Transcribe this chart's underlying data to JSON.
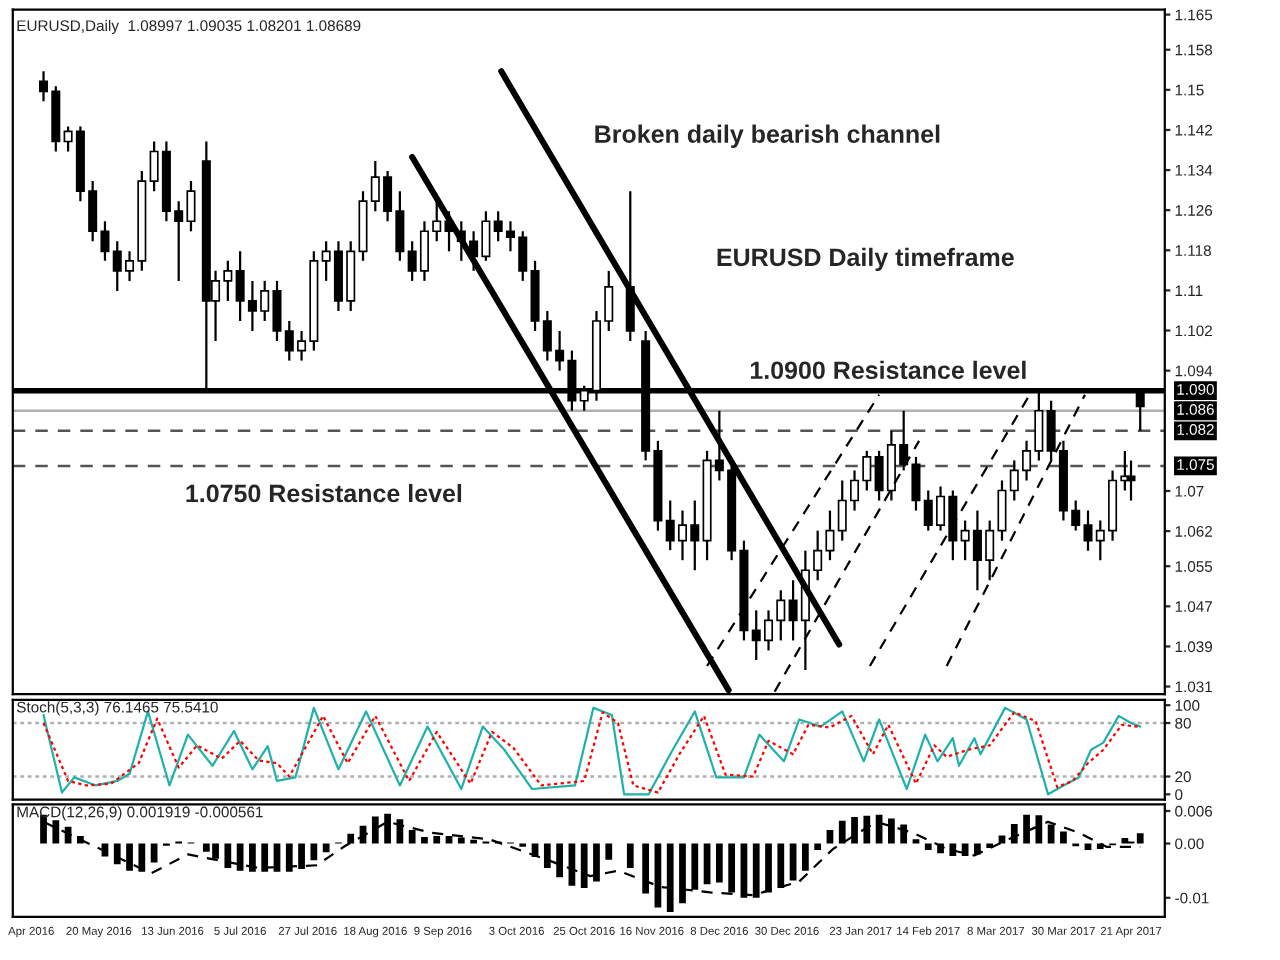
{
  "chart_data": [
    {
      "type": "candlestick",
      "title": "EURUSD,Daily  1.08997 1.09035 1.08201 1.08689",
      "tick_labels": "y",
      "x": [
        "2016-05-02",
        "2016-05-06",
        "2016-05-10",
        "2016-05-14",
        "2016-05-18",
        "2016-05-22",
        "2016-05-26",
        "2016-05-30",
        "2016-06-03",
        "2016-06-07",
        "2016-06-11",
        "2016-06-15",
        "2016-06-19",
        "2016-06-24",
        "2016-06-27",
        "2016-07-01",
        "2016-07-05",
        "2016-07-09",
        "2016-07-13",
        "2016-07-17",
        "2016-07-21",
        "2016-07-25",
        "2016-07-29",
        "2016-08-02",
        "2016-08-06",
        "2016-08-10",
        "2016-08-14",
        "2016-08-18",
        "2016-08-22",
        "2016-08-26",
        "2016-08-30",
        "2016-09-03",
        "2016-09-07",
        "2016-09-11",
        "2016-09-15",
        "2016-09-19",
        "2016-09-23",
        "2016-09-27",
        "2016-10-01",
        "2016-10-05",
        "2016-10-09",
        "2016-10-13",
        "2016-10-17",
        "2016-10-21",
        "2016-10-25",
        "2016-10-29",
        "2016-11-02",
        "2016-11-09",
        "2016-11-14",
        "2016-11-18",
        "2016-11-22",
        "2016-11-26",
        "2016-11-30",
        "2016-12-04",
        "2016-12-08",
        "2016-12-12",
        "2016-12-16",
        "2016-12-20",
        "2016-12-24",
        "2016-12-28",
        "2017-01-01",
        "2017-01-05",
        "2017-01-09",
        "2017-01-13",
        "2017-01-17",
        "2017-01-21",
        "2017-01-25",
        "2017-01-29",
        "2017-02-02",
        "2017-02-06",
        "2017-02-10",
        "2017-02-14",
        "2017-02-18",
        "2017-02-22",
        "2017-02-26",
        "2017-03-02",
        "2017-03-06",
        "2017-03-10",
        "2017-03-14",
        "2017-03-18",
        "2017-03-22",
        "2017-03-26",
        "2017-03-30",
        "2017-04-03",
        "2017-04-07",
        "2017-04-11",
        "2017-04-15",
        "2017-04-19",
        "2017-04-21",
        "2017-04-24"
      ],
      "ohlc": [
        [
          1.1517,
          1.1537,
          1.1477,
          1.1497
        ],
        [
          1.1497,
          1.1507,
          1.1377,
          1.1397
        ],
        [
          1.1397,
          1.1427,
          1.1377,
          1.1417
        ],
        [
          1.1417,
          1.1427,
          1.1278,
          1.1298
        ],
        [
          1.1298,
          1.1318,
          1.1198,
          1.1218
        ],
        [
          1.1218,
          1.1238,
          1.1159,
          1.1178
        ],
        [
          1.1178,
          1.1198,
          1.1099,
          1.1139
        ],
        [
          1.1139,
          1.1178,
          1.1119,
          1.1159
        ],
        [
          1.1159,
          1.1338,
          1.1139,
          1.1318
        ],
        [
          1.1318,
          1.1397,
          1.1298,
          1.1377
        ],
        [
          1.1377,
          1.1397,
          1.1238,
          1.1258
        ],
        [
          1.1258,
          1.1278,
          1.1119,
          1.1238
        ],
        [
          1.1238,
          1.1318,
          1.1218,
          1.1298
        ],
        [
          1.1358,
          1.1397,
          1.09,
          1.1079
        ],
        [
          1.1079,
          1.1139,
          1.0999,
          1.1119
        ],
        [
          1.1119,
          1.1159,
          1.1079,
          1.1139
        ],
        [
          1.1139,
          1.1178,
          1.1039,
          1.1079
        ],
        [
          1.1079,
          1.1119,
          1.1019,
          1.1059
        ],
        [
          1.1059,
          1.1119,
          1.1039,
          1.1099
        ],
        [
          1.1099,
          1.1119,
          1.0999,
          1.1019
        ],
        [
          1.1019,
          1.1039,
          1.096,
          1.098
        ],
        [
          1.098,
          1.1019,
          1.096,
          1.0999
        ],
        [
          1.0999,
          1.1178,
          1.098,
          1.1159
        ],
        [
          1.1159,
          1.1198,
          1.1119,
          1.1178
        ],
        [
          1.1178,
          1.1198,
          1.1059,
          1.1079
        ],
        [
          1.1079,
          1.1198,
          1.1059,
          1.1178
        ],
        [
          1.1178,
          1.1298,
          1.1159,
          1.1278
        ],
        [
          1.1278,
          1.1358,
          1.1258,
          1.1326
        ],
        [
          1.1326,
          1.1338,
          1.1238,
          1.1258
        ],
        [
          1.1258,
          1.1298,
          1.1159,
          1.1178
        ],
        [
          1.1178,
          1.1198,
          1.1119,
          1.1139
        ],
        [
          1.1139,
          1.1238,
          1.1119,
          1.1218
        ],
        [
          1.1218,
          1.1278,
          1.1198,
          1.1238
        ],
        [
          1.1238,
          1.1258,
          1.1178,
          1.1218
        ],
        [
          1.1218,
          1.1238,
          1.1159,
          1.1198
        ],
        [
          1.1198,
          1.1218,
          1.1139,
          1.1168
        ],
        [
          1.1168,
          1.1258,
          1.1159,
          1.1238
        ],
        [
          1.1238,
          1.1258,
          1.1198,
          1.1218
        ],
        [
          1.1218,
          1.1238,
          1.1178,
          1.1206
        ],
        [
          1.1206,
          1.1218,
          1.1119,
          1.1139
        ],
        [
          1.1139,
          1.1159,
          1.1019,
          1.1039
        ],
        [
          1.1039,
          1.1059,
          1.096,
          1.098
        ],
        [
          1.098,
          1.1019,
          1.094,
          1.096
        ],
        [
          1.096,
          1.098,
          1.086,
          1.088
        ],
        [
          1.088,
          1.091,
          1.086,
          1.09
        ],
        [
          1.09,
          1.1059,
          1.088,
          1.1039
        ],
        [
          1.1039,
          1.1139,
          1.1019,
          1.1107
        ],
        [
          1.1107,
          1.1298,
          1.0999,
          1.1019
        ],
        [
          1.0999,
          1.1019,
          1.0761,
          1.078
        ],
        [
          1.078,
          1.08,
          1.0621,
          1.0641
        ],
        [
          1.0641,
          1.0681,
          1.0582,
          1.0601
        ],
        [
          1.0601,
          1.0661,
          1.0562,
          1.0632
        ],
        [
          1.0632,
          1.0681,
          1.0542,
          1.0601
        ],
        [
          1.0601,
          1.078,
          1.0562,
          1.0761
        ],
        [
          1.0761,
          1.086,
          1.0721,
          1.0741
        ],
        [
          1.0741,
          1.0761,
          1.0562,
          1.0581
        ],
        [
          1.0581,
          1.0601,
          1.0402,
          1.0422
        ],
        [
          1.0422,
          1.0462,
          1.0363,
          1.0402
        ],
        [
          1.0402,
          1.0462,
          1.0382,
          1.0442
        ],
        [
          1.0442,
          1.0502,
          1.0402,
          1.0482
        ],
        [
          1.0482,
          1.0522,
          1.0402,
          1.0442
        ],
        [
          1.0442,
          1.0581,
          1.0343,
          1.0542
        ],
        [
          1.0542,
          1.0621,
          1.0522,
          1.0581
        ],
        [
          1.0581,
          1.0661,
          1.0562,
          1.0621
        ],
        [
          1.0621,
          1.0721,
          1.0601,
          1.0681
        ],
        [
          1.0681,
          1.0741,
          1.0661,
          1.0721
        ],
        [
          1.0721,
          1.078,
          1.0701,
          1.0768
        ],
        [
          1.0768,
          1.078,
          1.0681,
          1.0701
        ],
        [
          1.0701,
          1.082,
          1.0681,
          1.0792
        ],
        [
          1.0792,
          1.086,
          1.0741,
          1.0753
        ],
        [
          1.0753,
          1.0768,
          1.0661,
          1.0681
        ],
        [
          1.0681,
          1.0701,
          1.0621,
          1.0632
        ],
        [
          1.0632,
          1.0709,
          1.0621,
          1.0689
        ],
        [
          1.0689,
          1.0701,
          1.0562,
          1.0601
        ],
        [
          1.0601,
          1.0641,
          1.0562,
          1.0621
        ],
        [
          1.0621,
          1.0661,
          1.0502,
          1.0562
        ],
        [
          1.0562,
          1.0641,
          1.0522,
          1.0621
        ],
        [
          1.0621,
          1.0721,
          1.0601,
          1.0701
        ],
        [
          1.0701,
          1.0761,
          1.0681,
          1.0741
        ],
        [
          1.0741,
          1.08,
          1.0721,
          1.078
        ],
        [
          1.078,
          1.09,
          1.0761,
          1.086
        ],
        [
          1.086,
          1.088,
          1.0761,
          1.078
        ],
        [
          1.078,
          1.08,
          1.0641,
          1.0661
        ],
        [
          1.0661,
          1.0681,
          1.0621,
          1.0632
        ],
        [
          1.0632,
          1.0661,
          1.0581,
          1.0601
        ],
        [
          1.0601,
          1.0641,
          1.0562,
          1.0621
        ],
        [
          1.0621,
          1.0741,
          1.0601,
          1.0721
        ],
        [
          1.0721,
          1.078,
          1.0701,
          1.0729
        ],
        [
          1.0729,
          1.0761,
          1.0681,
          1.0721
        ],
        [
          1.08997,
          1.09035,
          1.08201,
          1.08689
        ]
      ],
      "series": [
        {
          "type": "line",
          "color": "#000000",
          "line_style": "solid",
          "x": [
            "2016-08-30",
            "2016-12-11"
          ],
          "values": [
            1.1366,
            1.0303
          ]
        },
        {
          "type": "line",
          "color": "#000000",
          "line_style": "solid",
          "x": [
            "2016-09-28",
            "2017-01-16"
          ],
          "values": [
            1.1537,
            1.0394
          ]
        },
        {
          "type": "line",
          "color": "#000000",
          "line_style": "dashed",
          "x": [
            "2016-12-04",
            "2017-01-29"
          ],
          "values": [
            1.0351,
            1.0892
          ]
        },
        {
          "type": "line",
          "color": "#000000",
          "line_style": "dashed",
          "x": [
            "2016-12-26",
            "2017-02-11"
          ],
          "values": [
            1.03,
            1.08
          ]
        },
        {
          "type": "line",
          "color": "#000000",
          "line_style": "dashed",
          "x": [
            "2017-01-26",
            "2017-03-19"
          ],
          "values": [
            1.0351,
            1.0892
          ]
        },
        {
          "type": "line",
          "color": "#000000",
          "line_style": "dashed",
          "x": [
            "2017-02-20",
            "2017-04-06"
          ],
          "values": [
            1.0351,
            1.0892
          ]
        }
      ],
      "ref_lines": [
        {
          "axis": "y",
          "value": 1.09,
          "label": "1.090",
          "color": "#000000",
          "line_style": "solid"
        },
        {
          "axis": "y",
          "value": 1.086,
          "label": "1.086",
          "color": "#b0b0b0",
          "line_style": "solid"
        },
        {
          "axis": "y",
          "value": 1.082,
          "label": "1.082",
          "color": "#555555",
          "line_style": "dashed"
        },
        {
          "axis": "y",
          "value": 1.075,
          "label": "1.075",
          "color": "#555555",
          "line_style": "dashed"
        }
      ],
      "annotations": [
        "Broken daily bearish channel",
        "EURUSD Daily timeframe",
        "1.0900 Resistance level",
        "1.0750 Resistance level"
      ],
      "xlim": [
        "2016-04-22",
        "2017-05-02"
      ],
      "ylim": [
        1.0295,
        1.166
      ],
      "yticks": [
        1.031,
        1.039,
        1.047,
        1.055,
        1.062,
        1.07,
        1.094,
        1.102,
        1.11,
        1.118,
        1.126,
        1.134,
        1.142,
        1.15,
        1.158,
        1.165
      ],
      "grid": false,
      "legend": false
    },
    {
      "type": "line",
      "title": "Stoch(5,3,3) 76.1465 75.5410",
      "tick_labels": "y",
      "series": [
        {
          "color": "#20b2aa",
          "line_style": "solid",
          "x": [
            "2016-05-02",
            "2016-05-08",
            "2016-05-12",
            "2016-05-19",
            "2016-05-26",
            "2016-05-30",
            "2016-06-05",
            "2016-06-12",
            "2016-06-18",
            "2016-06-26",
            "2016-07-03",
            "2016-07-09",
            "2016-07-14",
            "2016-07-17",
            "2016-07-23",
            "2016-07-29",
            "2016-08-06",
            "2016-08-15",
            "2016-08-26",
            "2016-09-04",
            "2016-09-15",
            "2016-09-22",
            "2016-09-29",
            "2016-10-08",
            "2016-10-22",
            "2016-10-28",
            "2016-11-03",
            "2016-11-07",
            "2016-11-15",
            "2016-11-22",
            "2016-11-30",
            "2016-12-07",
            "2016-12-16",
            "2016-12-21",
            "2016-12-29",
            "2017-01-03",
            "2017-01-10",
            "2017-01-17",
            "2017-01-24",
            "2017-01-29",
            "2017-02-07",
            "2017-02-13",
            "2017-02-17",
            "2017-02-22",
            "2017-02-24",
            "2017-03-01",
            "2017-03-03",
            "2017-03-11",
            "2017-03-18",
            "2017-03-25",
            "2017-03-30",
            "2017-04-04",
            "2017-04-08",
            "2017-04-12",
            "2017-04-17",
            "2017-04-21",
            "2017-04-24"
          ],
          "values": [
            89,
            2,
            19,
            10,
            15,
            23,
            93,
            10,
            67,
            32,
            71,
            28,
            54,
            15,
            19,
            97,
            28,
            93,
            10,
            76,
            6,
            76,
            50,
            6,
            10,
            97,
            89,
            0,
            0,
            45,
            93,
            19,
            19,
            67,
            37,
            84,
            76,
            93,
            37,
            84,
            6,
            67,
            37,
            63,
            32,
            63,
            45,
            97,
            84,
            0,
            10,
            19,
            50,
            58,
            88,
            80,
            76
          ]
        },
        {
          "color": "#ff0000",
          "line_style": "dotted",
          "x": [
            "2016-05-02",
            "2016-05-10",
            "2016-05-16",
            "2016-05-24",
            "2016-06-02",
            "2016-06-08",
            "2016-06-15",
            "2016-06-21",
            "2016-06-29",
            "2016-07-05",
            "2016-07-11",
            "2016-07-17",
            "2016-07-21",
            "2016-08-01",
            "2016-08-09",
            "2016-08-18",
            "2016-08-29",
            "2016-09-07",
            "2016-09-18",
            "2016-09-25",
            "2016-10-02",
            "2016-10-11",
            "2016-10-25",
            "2016-10-31",
            "2016-11-05",
            "2016-11-10",
            "2016-11-18",
            "2016-11-25",
            "2016-12-03",
            "2016-12-10",
            "2016-12-19",
            "2016-12-24",
            "2017-01-01",
            "2017-01-06",
            "2017-01-13",
            "2017-01-20",
            "2017-01-27",
            "2017-02-01",
            "2017-02-10",
            "2017-02-16",
            "2017-02-20",
            "2017-02-27",
            "2017-03-06",
            "2017-03-14",
            "2017-03-21",
            "2017-03-28",
            "2017-04-02",
            "2017-04-07",
            "2017-04-12",
            "2017-04-18",
            "2017-04-24"
          ],
          "values": [
            80,
            15,
            10,
            12,
            35,
            85,
            30,
            55,
            40,
            60,
            38,
            35,
            20,
            88,
            35,
            88,
            15,
            70,
            12,
            70,
            52,
            10,
            15,
            92,
            80,
            10,
            2,
            45,
            88,
            22,
            20,
            60,
            45,
            78,
            75,
            88,
            45,
            78,
            12,
            55,
            42,
            50,
            55,
            92,
            82,
            8,
            15,
            35,
            50,
            78,
            75.5
          ]
        }
      ],
      "ref_lines": [
        {
          "axis": "y",
          "value": 80,
          "color": "#b0b0b0",
          "line_style": "dotted"
        },
        {
          "axis": "y",
          "value": 20,
          "color": "#b0b0b0",
          "line_style": "dotted"
        }
      ],
      "xlim": [
        "2016-04-22",
        "2017-05-02"
      ],
      "ylim": [
        -6,
        106
      ],
      "yticks": [
        0,
        20,
        80,
        100
      ],
      "grid": false,
      "legend": false
    },
    {
      "type": "bar",
      "title": "MACD(12,26,9) 0.001919 -0.000561",
      "x": [
        "2016-05-02",
        "2016-05-06",
        "2016-05-10",
        "2016-05-14",
        "2016-05-18",
        "2016-05-22",
        "2016-05-26",
        "2016-05-30",
        "2016-06-03",
        "2016-06-07",
        "2016-06-11",
        "2016-06-15",
        "2016-06-19",
        "2016-06-24",
        "2016-06-27",
        "2016-07-01",
        "2016-07-05",
        "2016-07-09",
        "2016-07-13",
        "2016-07-17",
        "2016-07-21",
        "2016-07-25",
        "2016-07-29",
        "2016-08-02",
        "2016-08-06",
        "2016-08-10",
        "2016-08-14",
        "2016-08-18",
        "2016-08-22",
        "2016-08-26",
        "2016-08-30",
        "2016-09-03",
        "2016-09-07",
        "2016-09-11",
        "2016-09-15",
        "2016-09-19",
        "2016-09-23",
        "2016-09-27",
        "2016-10-01",
        "2016-10-05",
        "2016-10-09",
        "2016-10-13",
        "2016-10-17",
        "2016-10-21",
        "2016-10-25",
        "2016-10-29",
        "2016-11-02",
        "2016-11-09",
        "2016-11-14",
        "2016-11-18",
        "2016-11-22",
        "2016-11-26",
        "2016-11-30",
        "2016-12-04",
        "2016-12-08",
        "2016-12-12",
        "2016-12-16",
        "2016-12-20",
        "2016-12-24",
        "2016-12-28",
        "2017-01-01",
        "2017-01-05",
        "2017-01-09",
        "2017-01-13",
        "2017-01-17",
        "2017-01-21",
        "2017-01-25",
        "2017-01-29",
        "2017-02-02",
        "2017-02-06",
        "2017-02-10",
        "2017-02-14",
        "2017-02-18",
        "2017-02-22",
        "2017-02-26",
        "2017-03-02",
        "2017-03-06",
        "2017-03-10",
        "2017-03-14",
        "2017-03-18",
        "2017-03-22",
        "2017-03-26",
        "2017-03-30",
        "2017-04-03",
        "2017-04-07",
        "2017-04-11",
        "2017-04-15",
        "2017-04-19",
        "2017-04-21",
        "2017-04-24"
      ],
      "series": [
        {
          "type": "bar",
          "color": "#000000",
          "values": [
            0.0053,
            0.0043,
            0.0031,
            0.0014,
            0.0,
            -0.0024,
            -0.0038,
            -0.005,
            -0.0052,
            -0.0035,
            -0.0004,
            0.0004,
            0.0002,
            -0.0015,
            -0.0028,
            -0.0045,
            -0.005,
            -0.0052,
            -0.0052,
            -0.0052,
            -0.0052,
            -0.0047,
            -0.0031,
            -0.0016,
            0.0002,
            0.0018,
            0.0033,
            0.005,
            0.0055,
            0.0045,
            0.0025,
            0.0012,
            0.0014,
            0.0014,
            0.0011,
            0.0007,
            0.0004,
            0.0004,
            0.0002,
            -0.0006,
            -0.0025,
            -0.0045,
            -0.0062,
            -0.0078,
            -0.0082,
            -0.007,
            -0.003,
            -0.0045,
            -0.0092,
            -0.0118,
            -0.0126,
            -0.011,
            -0.0085,
            -0.0075,
            -0.0072,
            -0.009,
            -0.01,
            -0.01,
            -0.009,
            -0.0082,
            -0.0068,
            -0.005,
            -0.0012,
            0.0025,
            0.0042,
            0.0049,
            0.0051,
            0.0053,
            0.0046,
            0.0035,
            0.0008,
            -0.0012,
            -0.0018,
            -0.0023,
            -0.0023,
            -0.002,
            -0.0008,
            0.0015,
            0.0036,
            0.0053,
            0.0052,
            0.0035,
            0.0022,
            -0.0005,
            -0.0012,
            -0.001,
            -0.0003,
            0.001,
            0.0004,
            0.0019
          ]
        },
        {
          "type": "line",
          "color": "#000000",
          "line_style": "dashed",
          "x": [
            "2016-05-02",
            "2016-06-06",
            "2016-06-18",
            "2016-07-11",
            "2016-07-30",
            "2016-08-08",
            "2016-08-22",
            "2016-09-05",
            "2016-09-24",
            "2016-10-13",
            "2016-10-27",
            "2016-11-05",
            "2016-11-19",
            "2016-12-05",
            "2016-12-19",
            "2017-01-03",
            "2017-01-14",
            "2017-01-28",
            "2017-02-09",
            "2017-02-20",
            "2017-03-01",
            "2017-03-13",
            "2017-03-25",
            "2017-04-04",
            "2017-04-13",
            "2017-04-24"
          ],
          "values": [
            0.004,
            -0.0055,
            -0.002,
            -0.0045,
            -0.004,
            -0.0005,
            0.004,
            0.002,
            0.0008,
            -0.003,
            -0.006,
            -0.005,
            -0.008,
            -0.009,
            -0.0095,
            -0.007,
            -0.001,
            0.004,
            0.002,
            -0.001,
            -0.0022,
            0.001,
            0.004,
            0.002,
            -0.0006,
            -0.0006
          ]
        }
      ],
      "xlim": [
        "2016-04-22",
        "2017-05-02"
      ],
      "ylim": [
        -0.0135,
        0.0072
      ],
      "yticks": [
        0.006,
        {
          "value": 0,
          "label": "0.00"
        },
        -0.01
      ],
      "xticks": [
        {
          "value": "2016-04-28",
          "label": "Apr 2016"
        },
        {
          "value": "2016-05-20",
          "label": "20 May 2016"
        },
        {
          "value": "2016-06-13",
          "label": "13 Jun 2016"
        },
        {
          "value": "2016-07-05",
          "label": "5 Jul 2016"
        },
        {
          "value": "2016-07-27",
          "label": "27 Jul 2016"
        },
        {
          "value": "2016-08-18",
          "label": "18 Aug 2016"
        },
        {
          "value": "2016-09-09",
          "label": "9 Sep 2016"
        },
        {
          "value": "2016-10-03",
          "label": "3 Oct 2016"
        },
        {
          "value": "2016-10-25",
          "label": "25 Oct 2016"
        },
        {
          "value": "2016-11-16",
          "label": "16 Nov 2016"
        },
        {
          "value": "2016-12-08",
          "label": "8 Dec 2016"
        },
        {
          "value": "2016-12-30",
          "label": "30 Dec 2016"
        },
        {
          "value": "2017-01-23",
          "label": "23 Jan 2017"
        },
        {
          "value": "2017-02-14",
          "label": "14 Feb 2017"
        },
        {
          "value": "2017-03-08",
          "label": "8 Mar 2017"
        },
        {
          "value": "2017-03-30",
          "label": "30 Mar 2017"
        },
        {
          "value": "2017-04-21",
          "label": "21 Apr 2017"
        }
      ],
      "grid": false,
      "legend": false
    }
  ]
}
